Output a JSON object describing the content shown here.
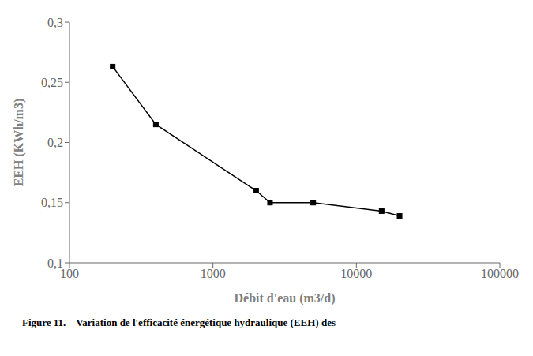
{
  "chart_data": {
    "type": "line",
    "x": [
      200,
      400,
      2000,
      2500,
      5000,
      15000,
      20000
    ],
    "values": [
      0.263,
      0.215,
      0.16,
      0.15,
      0.15,
      0.143,
      0.139
    ],
    "xlabel": "Débit d'eau (m3/d)",
    "ylabel": "EEH (KWh/m3)",
    "log": "x",
    "xlim": [
      100,
      100000
    ],
    "ylim": [
      0.1,
      0.3
    ],
    "xticks": [
      100,
      1000,
      10000,
      100000
    ],
    "yticks": [
      {
        "value": 0.1,
        "label": "0,1"
      },
      {
        "value": 0.15,
        "label": "0,15"
      },
      {
        "value": 0.2,
        "label": "0,2"
      },
      {
        "value": 0.25,
        "label": "0,25"
      },
      {
        "value": 0.3,
        "label": "0,3"
      }
    ],
    "color": "#000000",
    "marker": "square",
    "grid": false,
    "caption": "Figure 11.    Variation de l'efficacité énergétique hydraulique (EEH) des"
  }
}
